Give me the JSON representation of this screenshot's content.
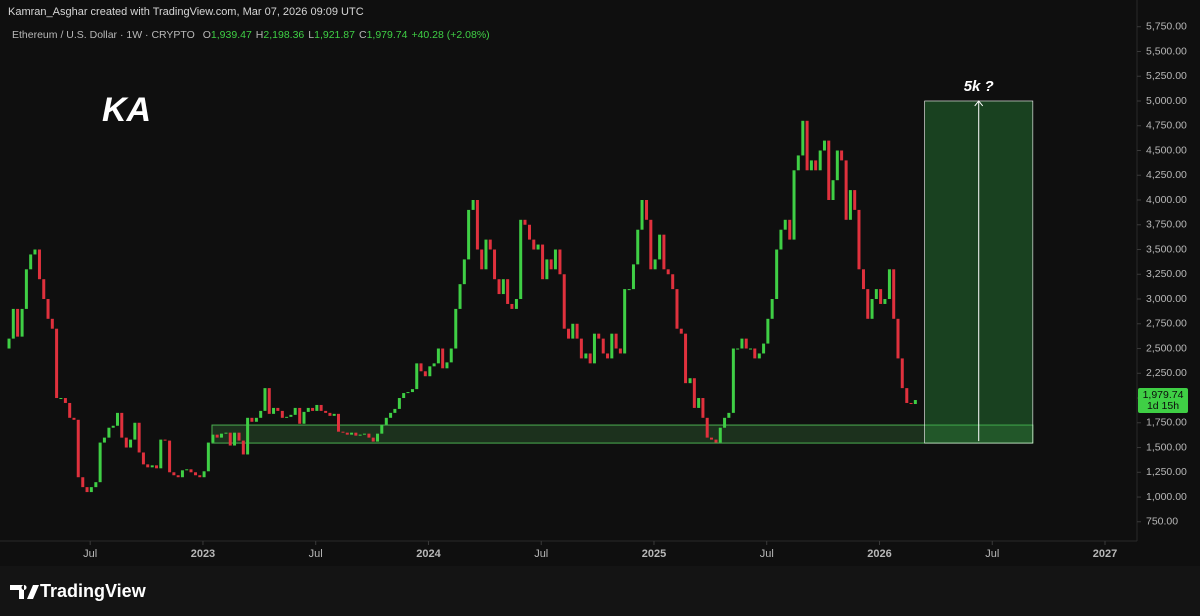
{
  "attribution": "Kamran_Asghar created with TradingView.com, Mar 07, 2026 09:09 UTC",
  "brand": "TradingView",
  "chart_data": {
    "type": "candlestick",
    "title": "Ethereum / U.S. Dollar · 1W · CRYPTO",
    "ohlc": [
      {
        "key": "O",
        "value": "1,939.47"
      },
      {
        "key": "H",
        "value": "2,198.36"
      },
      {
        "key": "L",
        "value": "1,921.87"
      },
      {
        "key": "C",
        "value": "1,979.74"
      }
    ],
    "change": "+40.28 (+2.08%)",
    "watermark": "KA",
    "up_color": "#3fcf45",
    "down_color": "#e0313d",
    "grid": false,
    "xlim": [
      2022.1,
      2027.133
    ],
    "xticks": [
      {
        "value": 2022.5,
        "label": "Jul"
      },
      2023,
      {
        "value": 2023.5,
        "label": "Jul"
      },
      2024,
      {
        "value": 2024.5,
        "label": "Jul"
      },
      2025,
      {
        "value": 2025.5,
        "label": "Jul"
      },
      2026,
      {
        "value": 2026.5,
        "label": "Jul"
      },
      2027
    ],
    "ylim": [
      566,
      6020
    ],
    "yticks": [
      {
        "value": 750,
        "label": "750.00"
      },
      {
        "value": 1000,
        "label": "1,000.00"
      },
      {
        "value": 1250,
        "label": "1,250.00"
      },
      {
        "value": 1500,
        "label": "1,500.00"
      },
      {
        "value": 1750,
        "label": "1,750.00"
      },
      {
        "value": 2000,
        "label": "2,000.00"
      },
      {
        "value": 2250,
        "label": "2,250.00"
      },
      {
        "value": 2500,
        "label": "2,500.00"
      },
      {
        "value": 2750,
        "label": "2,750.00"
      },
      {
        "value": 3000,
        "label": "3,000.00"
      },
      {
        "value": 3250,
        "label": "3,250.00"
      },
      {
        "value": 3500,
        "label": "3,500.00"
      },
      {
        "value": 3750,
        "label": "3,750.00"
      },
      {
        "value": 4000,
        "label": "4,000.00"
      },
      {
        "value": 4250,
        "label": "4,250.00"
      },
      {
        "value": 4500,
        "label": "4,500.00"
      },
      {
        "value": 4750,
        "label": "4,750.00"
      },
      {
        "value": 5000,
        "label": "5,000.00"
      },
      {
        "value": 5250,
        "label": "5,250.00"
      },
      {
        "value": 5500,
        "label": "5,500.00"
      },
      {
        "value": 5750,
        "label": "5,750.00"
      }
    ],
    "x": [
      2022.14,
      2022.159,
      2022.178,
      2022.198,
      2022.217,
      2022.236,
      2022.255,
      2022.275,
      2022.294,
      2022.313,
      2022.332,
      2022.351,
      2022.37,
      2022.39,
      2022.409,
      2022.428,
      2022.447,
      2022.467,
      2022.486,
      2022.505,
      2022.525,
      2022.544,
      2022.563,
      2022.583,
      2022.602,
      2022.621,
      2022.64,
      2022.66,
      2022.679,
      2022.698,
      2022.717,
      2022.736,
      2022.755,
      2022.775,
      2022.794,
      2022.813,
      2022.832,
      2022.852,
      2022.871,
      2022.89,
      2022.909,
      2022.928,
      2022.947,
      2022.967,
      2022.986,
      2023.005,
      2023.024,
      2023.044,
      2023.063,
      2023.082,
      2023.102,
      2023.121,
      2023.14,
      2023.16,
      2023.179,
      2023.198,
      2023.217,
      2023.237,
      2023.256,
      2023.275,
      2023.294,
      2023.313,
      2023.332,
      2023.352,
      2023.371,
      2023.39,
      2023.409,
      2023.429,
      2023.448,
      2023.467,
      2023.486,
      2023.505,
      2023.524,
      2023.544,
      2023.563,
      2023.582,
      2023.601,
      2023.621,
      2023.64,
      2023.659,
      2023.678,
      2023.697,
      2023.716,
      2023.736,
      2023.755,
      2023.774,
      2023.793,
      2023.813,
      2023.832,
      2023.851,
      2023.871,
      2023.89,
      2023.909,
      2023.929,
      2023.948,
      2023.967,
      2023.986,
      2024.006,
      2024.025,
      2024.044,
      2024.063,
      2024.082,
      2024.101,
      2024.121,
      2024.14,
      2024.159,
      2024.178,
      2024.198,
      2024.217,
      2024.236,
      2024.255,
      2024.274,
      2024.293,
      2024.313,
      2024.332,
      2024.351,
      2024.37,
      2024.39,
      2024.409,
      2024.428,
      2024.448,
      2024.467,
      2024.486,
      2024.506,
      2024.525,
      2024.544,
      2024.563,
      2024.583,
      2024.602,
      2024.621,
      2024.64,
      2024.659,
      2024.678,
      2024.698,
      2024.717,
      2024.736,
      2024.755,
      2024.775,
      2024.794,
      2024.813,
      2024.832,
      2024.851,
      2024.87,
      2024.89,
      2024.909,
      2024.928,
      2024.947,
      2024.967,
      2024.986,
      2025.005,
      2025.025,
      2025.044,
      2025.063,
      2025.083,
      2025.102,
      2025.121,
      2025.14,
      2025.16,
      2025.179,
      2025.198,
      2025.217,
      2025.236,
      2025.255,
      2025.275,
      2025.294,
      2025.313,
      2025.332,
      2025.352,
      2025.371,
      2025.39,
      2025.409,
      2025.428,
      2025.447,
      2025.467,
      2025.486,
      2025.505,
      2025.524,
      2025.544,
      2025.563,
      2025.582,
      2025.602,
      2025.621,
      2025.64,
      2025.66,
      2025.679,
      2025.698,
      2025.717,
      2025.737,
      2025.756,
      2025.775,
      2025.794,
      2025.813,
      2025.832,
      2025.852,
      2025.871,
      2025.89,
      2025.909,
      2025.929,
      2025.948,
      2025.967,
      2025.986,
      2026.005,
      2026.024,
      2026.044,
      2026.063,
      2026.082,
      2026.101,
      2026.121,
      2026.14,
      2026.159
    ],
    "open": [
      2500,
      2600,
      2900,
      2620,
      2900,
      3300,
      3450,
      3500,
      3200,
      3000,
      2800,
      2700,
      2000,
      2000,
      1950,
      1800,
      1780,
      1200,
      1100,
      1050,
      1100,
      1150,
      1550,
      1600,
      1700,
      1720,
      1850,
      1600,
      1500,
      1580,
      1750,
      1450,
      1330,
      1300,
      1320,
      1290,
      1580,
      1570,
      1250,
      1220,
      1200,
      1270,
      1280,
      1250,
      1220,
      1200,
      1260,
      1550,
      1630,
      1600,
      1640,
      1650,
      1520,
      1650,
      1570,
      1430,
      1800,
      1760,
      1800,
      1870,
      2100,
      1840,
      1900,
      1870,
      1800,
      1810,
      1830,
      1900,
      1740,
      1860,
      1900,
      1870,
      1930,
      1870,
      1850,
      1820,
      1840,
      1660,
      1650,
      1630,
      1650,
      1620,
      1630,
      1640,
      1600,
      1560,
      1640,
      1730,
      1800,
      1850,
      1890,
      2000,
      2050,
      2060,
      2090,
      2350,
      2270,
      2220,
      2320,
      2350,
      2500,
      2300,
      2360,
      2500,
      2900,
      3150,
      3400,
      3900,
      4000,
      3500,
      3300,
      3600,
      3500,
      3200,
      3050,
      3200,
      2950,
      2900,
      3000,
      3800,
      3750,
      3600,
      3500,
      3550,
      3200,
      3400,
      3300,
      3500,
      3250,
      2700,
      2600,
      2750,
      2600,
      2400,
      2450,
      2350,
      2650,
      2600,
      2450,
      2400,
      2650,
      2500,
      2450,
      3100,
      3100,
      3350,
      3700,
      4000,
      3800,
      3300,
      3400,
      3650,
      3300,
      3250,
      3100,
      2700,
      2650,
      2150,
      2200,
      1900,
      2000,
      1800,
      1600,
      1580,
      1550,
      1700,
      1800,
      1850,
      2500,
      2500,
      2600,
      2500,
      2500,
      2400,
      2450,
      2550,
      2800,
      3000,
      3500,
      3700,
      3800,
      3600,
      4300,
      4450,
      4800,
      4300,
      4400,
      4300,
      4500,
      4600,
      4000,
      4200,
      4500,
      4400,
      3800,
      4100,
      3900,
      3300,
      3100,
      2800,
      3000,
      3100,
      2950,
      3000,
      3300,
      2800,
      2400,
      2100,
      1950,
      1939.47
    ],
    "close": [
      2600,
      2900,
      2620,
      2900,
      3300,
      3450,
      3500,
      3200,
      3000,
      2800,
      2700,
      2000,
      2000,
      1950,
      1800,
      1780,
      1200,
      1100,
      1050,
      1100,
      1150,
      1550,
      1600,
      1700,
      1720,
      1850,
      1600,
      1500,
      1580,
      1750,
      1450,
      1330,
      1300,
      1320,
      1290,
      1580,
      1570,
      1250,
      1220,
      1200,
      1270,
      1280,
      1250,
      1220,
      1200,
      1260,
      1550,
      1630,
      1600,
      1640,
      1650,
      1520,
      1650,
      1570,
      1430,
      1800,
      1760,
      1800,
      1870,
      2100,
      1840,
      1900,
      1870,
      1800,
      1810,
      1830,
      1900,
      1740,
      1860,
      1900,
      1870,
      1930,
      1870,
      1850,
      1820,
      1840,
      1660,
      1650,
      1630,
      1650,
      1620,
      1630,
      1640,
      1600,
      1560,
      1640,
      1730,
      1800,
      1850,
      1890,
      2000,
      2050,
      2060,
      2090,
      2350,
      2270,
      2220,
      2320,
      2350,
      2500,
      2300,
      2360,
      2500,
      2900,
      3150,
      3400,
      3900,
      4000,
      3500,
      3300,
      3600,
      3500,
      3200,
      3050,
      3200,
      2950,
      2900,
      3000,
      3800,
      3750,
      3600,
      3500,
      3550,
      3200,
      3400,
      3300,
      3500,
      3250,
      2700,
      2600,
      2750,
      2600,
      2400,
      2450,
      2350,
      2650,
      2600,
      2450,
      2400,
      2650,
      2500,
      2450,
      3100,
      3100,
      3350,
      3700,
      4000,
      3800,
      3300,
      3400,
      3650,
      3300,
      3250,
      3100,
      2700,
      2650,
      2150,
      2200,
      1900,
      2000,
      1800,
      1600,
      1580,
      1550,
      1700,
      1800,
      1850,
      2500,
      2500,
      2600,
      2500,
      2500,
      2400,
      2450,
      2550,
      2800,
      3000,
      3500,
      3700,
      3800,
      3600,
      4300,
      4450,
      4800,
      4300,
      4400,
      4300,
      4500,
      4600,
      4000,
      4200,
      4500,
      4400,
      3800,
      4100,
      3900,
      3300,
      3100,
      2800,
      3000,
      3100,
      2950,
      3000,
      3300,
      2800,
      2400,
      2100,
      1950,
      1939.47,
      1979.74
    ],
    "last_price_label": "1,979.74",
    "countdown": "1d 15h",
    "support_zone": {
      "x": [
        2023.04,
        2026.68
      ],
      "y": [
        1545,
        1727
      ]
    },
    "target": {
      "x": [
        2026.2,
        2026.68
      ],
      "y": [
        1545,
        5000
      ],
      "label": "5k ?"
    }
  }
}
